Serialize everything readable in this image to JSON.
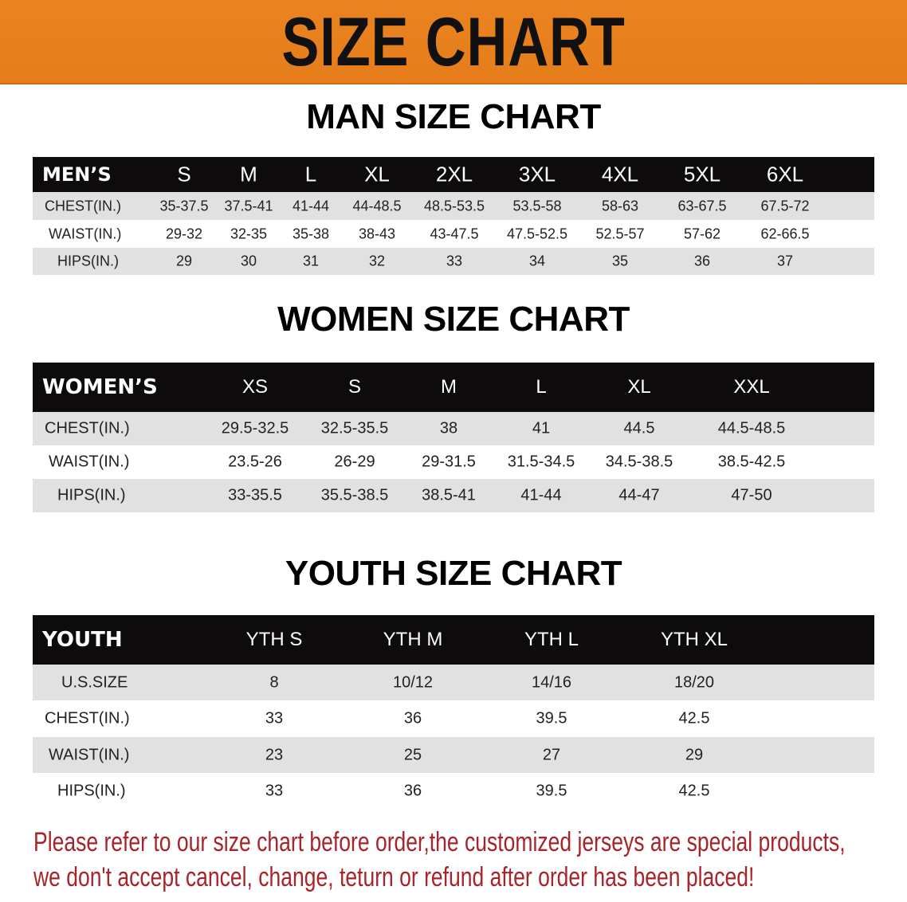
{
  "banner_title": "SIZE CHART",
  "men": {
    "title": "MAN SIZE CHART",
    "header_label": "MEN’S",
    "sizes": [
      "S",
      "M",
      "L",
      "XL",
      "2XL",
      "3XL",
      "4XL",
      "5XL",
      "6XL"
    ],
    "rows": [
      {
        "label": "CHEST(IN.)",
        "values": [
          "35-37.5",
          "37.5-41",
          "41-44",
          "44-48.5",
          "48.5-53.5",
          "53.5-58",
          "58-63",
          "63-67.5",
          "67.5-72"
        ]
      },
      {
        "label": "WAIST(IN.)",
        "values": [
          "29-32",
          "32-35",
          "35-38",
          "38-43",
          "43-47.5",
          "47.5-52.5",
          "52.5-57",
          "57-62",
          "62-66.5"
        ]
      },
      {
        "label": "HIPS(IN.)",
        "values": [
          "29",
          "30",
          "31",
          "32",
          "33",
          "34",
          "35",
          "36",
          "37"
        ]
      }
    ]
  },
  "women": {
    "title": "WOMEN SIZE CHART",
    "header_label": "WOMEN’S",
    "sizes": [
      "XS",
      "S",
      "M",
      "L",
      "XL",
      "XXL"
    ],
    "rows": [
      {
        "label": "CHEST(IN.)",
        "values": [
          "29.5-32.5",
          "32.5-35.5",
          "38",
          "41",
          "44.5",
          "44.5-48.5"
        ]
      },
      {
        "label": "WAIST(IN.)",
        "values": [
          "23.5-26",
          "26-29",
          "29-31.5",
          "31.5-34.5",
          "34.5-38.5",
          "38.5-42.5"
        ]
      },
      {
        "label": "HIPS(IN.)",
        "values": [
          "33-35.5",
          "35.5-38.5",
          "38.5-41",
          "41-44",
          "44-47",
          "47-50"
        ]
      }
    ]
  },
  "youth": {
    "title": "YOUTH SIZE CHART",
    "header_label": "YOUTH",
    "sizes": [
      "YTH S",
      "YTH M",
      "YTH L",
      "YTH XL"
    ],
    "rows": [
      {
        "label": "U.S.SIZE",
        "values": [
          "8",
          "10/12",
          "14/16",
          "18/20"
        ]
      },
      {
        "label": "CHEST(IN.)",
        "values": [
          "33",
          "36",
          "39.5",
          "42.5"
        ]
      },
      {
        "label": "WAIST(IN.)",
        "values": [
          "23",
          "25",
          "27",
          "29"
        ]
      },
      {
        "label": "HIPS(IN.)",
        "values": [
          "33",
          "36",
          "39.5",
          "42.5"
        ]
      }
    ]
  },
  "notice": [
    "Please refer to our size chart before order,the customized jerseys are special products,",
    "we don't accept cancel, change, teturn or refund after order has been placed!"
  ],
  "colors": {
    "banner": "#e88220",
    "header": "#0d0b0b",
    "notice": "#a8232a"
  }
}
